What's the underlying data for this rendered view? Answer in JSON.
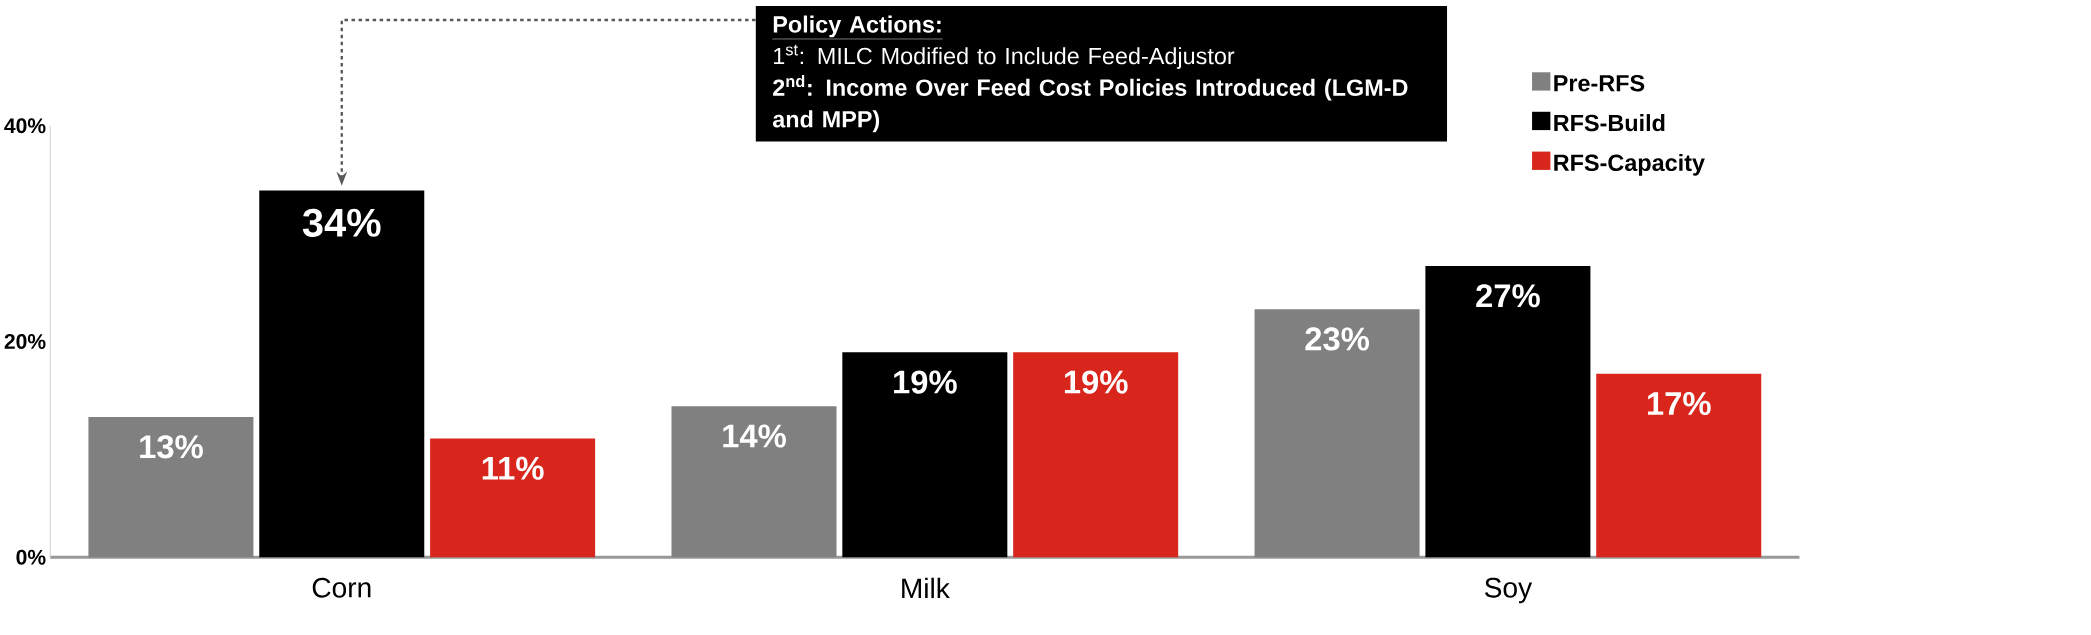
{
  "chart_data": {
    "type": "bar",
    "categories": [
      "Corn",
      "Milk",
      "Soy"
    ],
    "series": [
      {
        "name": "Pre-RFS",
        "color": "#808080",
        "values": [
          13,
          14,
          23
        ],
        "value_labels": [
          "13%",
          "14%",
          "23%"
        ]
      },
      {
        "name": "RFS-Build",
        "color": "#000000",
        "values": [
          34,
          19,
          27
        ],
        "value_labels": [
          "34%",
          "19%",
          "27%"
        ]
      },
      {
        "name": "RFS-Capacity",
        "color": "#d9261c",
        "values": [
          11,
          19,
          17
        ],
        "value_labels": [
          "11%",
          "19%",
          "17%"
        ]
      }
    ],
    "ylim": [
      0,
      40
    ],
    "yticks": [
      {
        "value": 0,
        "label": "0%"
      },
      {
        "value": 20,
        "label": "20%"
      },
      {
        "value": 40,
        "label": "40%"
      }
    ],
    "legend": "top right",
    "annotations": [
      "Policy Actions:",
      "1$^{st}$: MILC Modified to Include Feed-Adjustor",
      "2$^{nd}$: Income Over Feed Cost Policies Introduced (LGM-D and MPP)"
    ]
  }
}
